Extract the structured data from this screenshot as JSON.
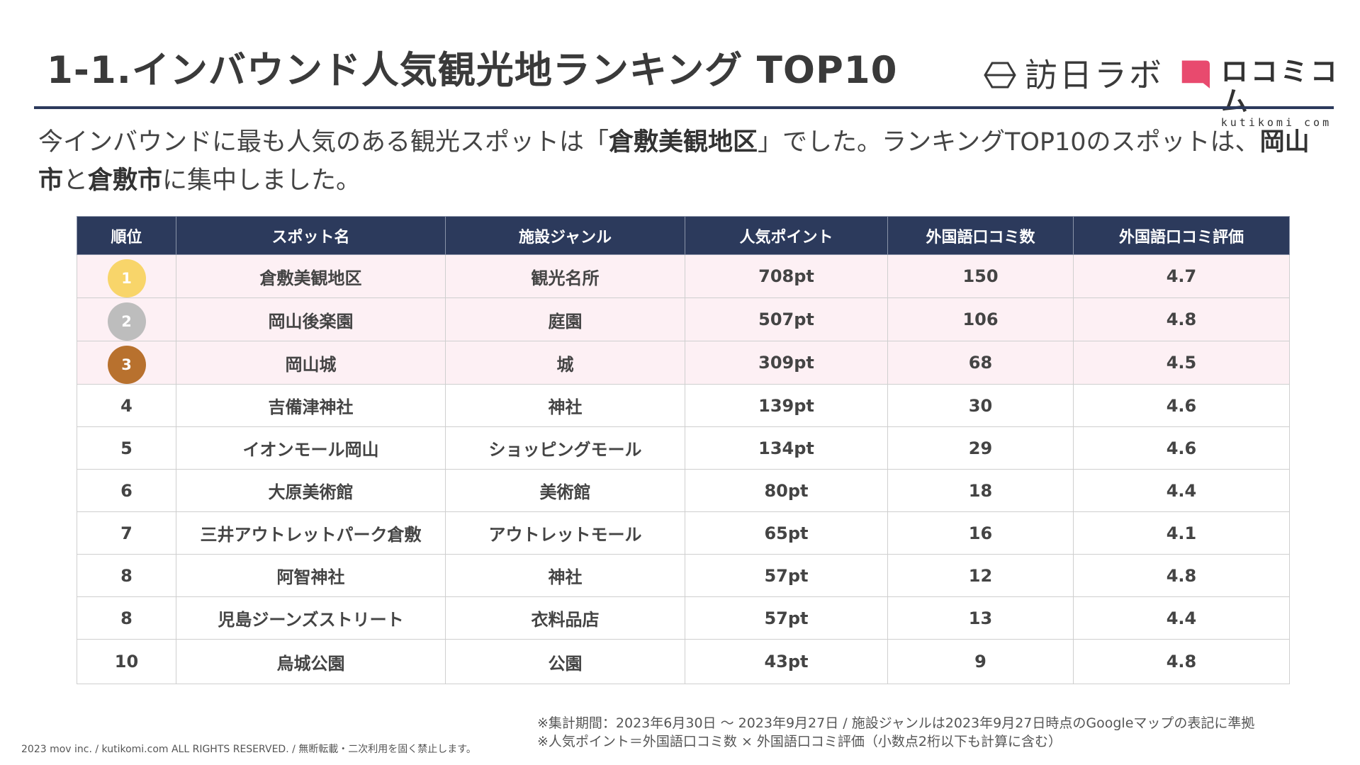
{
  "header": {
    "title": "1-1.インバウンド人気観光地ランキング TOP10",
    "logo1_text": "訪日ラボ",
    "logo2_main": "ロコミコム",
    "logo2_sub": "kutikomi com"
  },
  "lead": {
    "p1": "今インバウンドに最も人気のある観光スポットは「",
    "b1": "倉敷美観地区",
    "p2": "」でした。ランキングTOP10のスポットは、",
    "b2": "岡山市",
    "p3": "と",
    "b3": "倉敷市",
    "p4": "に集中しました。"
  },
  "table": {
    "headers": [
      "順位",
      "スポット名",
      "施設ジャンル",
      "人気ポイント",
      "外国語口コミ数",
      "外国語口コミ評価"
    ],
    "rows": [
      {
        "rank": "1",
        "name": "倉敷美観地区",
        "genre": "観光名所",
        "points": "708pt",
        "reviews": "150",
        "rating": "4.7"
      },
      {
        "rank": "2",
        "name": "岡山後楽園",
        "genre": "庭園",
        "points": "507pt",
        "reviews": "106",
        "rating": "4.8"
      },
      {
        "rank": "3",
        "name": "岡山城",
        "genre": "城",
        "points": "309pt",
        "reviews": "68",
        "rating": "4.5"
      },
      {
        "rank": "4",
        "name": "吉備津神社",
        "genre": "神社",
        "points": "139pt",
        "reviews": "30",
        "rating": "4.6"
      },
      {
        "rank": "5",
        "name": "イオンモール岡山",
        "genre": "ショッピングモール",
        "points": "134pt",
        "reviews": "29",
        "rating": "4.6"
      },
      {
        "rank": "6",
        "name": "大原美術館",
        "genre": "美術館",
        "points": "80pt",
        "reviews": "18",
        "rating": "4.4"
      },
      {
        "rank": "7",
        "name": "三井アウトレットパーク倉敷",
        "genre": "アウトレットモール",
        "points": "65pt",
        "reviews": "16",
        "rating": "4.1"
      },
      {
        "rank": "8",
        "name": "阿智神社",
        "genre": "神社",
        "points": "57pt",
        "reviews": "12",
        "rating": "4.8"
      },
      {
        "rank": "8",
        "name": "児島ジーンズストリート",
        "genre": "衣料品店",
        "points": "57pt",
        "reviews": "13",
        "rating": "4.4"
      },
      {
        "rank": "10",
        "name": "烏城公園",
        "genre": "公園",
        "points": "43pt",
        "reviews": "9",
        "rating": "4.8"
      }
    ]
  },
  "notes": {
    "line1": "※集計期間：2023年6月30日 ～ 2023年9月27日 / 施設ジャンルは2023年9月27日時点のGoogleマップの表記に準拠",
    "line2": "※人気ポイント＝外国語口コミ数 × 外国語口コミ評価（小数点2桁以下も計算に含む）"
  },
  "footer": {
    "copyright": "2023 mov inc. / kutikomi.com ALL RIGHTS RESERVED. / 無断転載・二次利用を固く禁止します。"
  },
  "colors": {
    "navy": "#2c3a5c",
    "highlight_row": "#fdf0f4",
    "gold": "#f8d56a",
    "silver": "#bdbdbd",
    "bronze": "#b8712e",
    "brand_pink": "#e84a6e"
  }
}
